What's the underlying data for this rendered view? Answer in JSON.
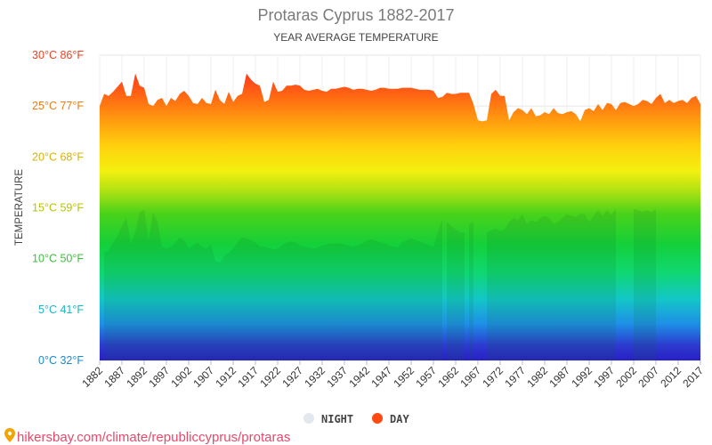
{
  "chart_data": {
    "type": "area",
    "title": "Protaras Cyprus 1882-2017",
    "subtitle": "YEAR AVERAGE TEMPERATURE",
    "ylabel": "TEMPERATURE",
    "ylim": [
      0,
      30
    ],
    "y_ticks": [
      {
        "value": 0,
        "label": "0°C 32°F",
        "color": "#1e88c9"
      },
      {
        "value": 5,
        "label": "5°C 41°F",
        "color": "#19b7c4"
      },
      {
        "value": 10,
        "label": "10°C 50°F",
        "color": "#3fbf3f"
      },
      {
        "value": 15,
        "label": "15°C 59°F",
        "color": "#b8c400"
      },
      {
        "value": 20,
        "label": "20°C 68°F",
        "color": "#d8b300"
      },
      {
        "value": 25,
        "label": "25°C 77°F",
        "color": "#f07a12"
      },
      {
        "value": 30,
        "label": "30°C 86°F",
        "color": "#f0401f"
      }
    ],
    "x_ticks": [
      "1882",
      "1887",
      "1892",
      "1897",
      "1902",
      "1907",
      "1912",
      "1917",
      "1922",
      "1927",
      "1932",
      "1937",
      "1942",
      "1947",
      "1952",
      "1957",
      "1962",
      "1967",
      "1972",
      "1977",
      "1982",
      "1987",
      "1992",
      "1997",
      "2002",
      "2007",
      "2012",
      "2017"
    ],
    "xlim": [
      1882,
      2017
    ],
    "grid": true,
    "legend_position": "bottom",
    "series": [
      {
        "name": "DAY",
        "color": "#ff4a12",
        "points": [
          [
            1882,
            25.0
          ],
          [
            1883,
            26.2
          ],
          [
            1884,
            26.0
          ],
          [
            1885,
            26.4
          ],
          [
            1887,
            27.4
          ],
          [
            1888,
            26.0
          ],
          [
            1889,
            26.0
          ],
          [
            1890,
            28.2
          ],
          [
            1891,
            27.0
          ],
          [
            1892,
            26.8
          ],
          [
            1893,
            25.2
          ],
          [
            1894,
            25.0
          ],
          [
            1895,
            25.6
          ],
          [
            1896,
            25.8
          ],
          [
            1897,
            25.0
          ],
          [
            1898,
            25.8
          ],
          [
            1899,
            25.5
          ],
          [
            1900,
            26.2
          ],
          [
            1901,
            26.5
          ],
          [
            1902,
            26.0
          ],
          [
            1903,
            25.3
          ],
          [
            1904,
            25.2
          ],
          [
            1905,
            25.8
          ],
          [
            1906,
            25.3
          ],
          [
            1907,
            25.2
          ],
          [
            1908,
            26.6
          ],
          [
            1909,
            25.6
          ],
          [
            1910,
            25.2
          ],
          [
            1911,
            26.4
          ],
          [
            1912,
            25.4
          ],
          [
            1913,
            26.0
          ],
          [
            1914,
            26.2
          ],
          [
            1915,
            28.2
          ],
          [
            1916,
            27.6
          ],
          [
            1917,
            27.2
          ],
          [
            1918,
            27.0
          ],
          [
            1919,
            25.4
          ],
          [
            1920,
            25.6
          ],
          [
            1921,
            27.4
          ],
          [
            1922,
            26.4
          ],
          [
            1923,
            26.5
          ],
          [
            1924,
            27.0
          ],
          [
            1925,
            27.0
          ],
          [
            1926,
            27.1
          ],
          [
            1927,
            27.0
          ],
          [
            1928,
            26.6
          ],
          [
            1929,
            26.5
          ],
          [
            1930,
            26.6
          ],
          [
            1931,
            26.7
          ],
          [
            1932,
            26.5
          ],
          [
            1933,
            26.4
          ],
          [
            1934,
            26.7
          ],
          [
            1935,
            26.7
          ],
          [
            1936,
            26.8
          ],
          [
            1937,
            26.9
          ],
          [
            1938,
            26.8
          ],
          [
            1939,
            26.6
          ],
          [
            1940,
            26.7
          ],
          [
            1941,
            26.7
          ],
          [
            1942,
            26.6
          ],
          [
            1943,
            26.5
          ],
          [
            1944,
            26.6
          ],
          [
            1945,
            26.8
          ],
          [
            1946,
            26.8
          ],
          [
            1947,
            26.7
          ],
          [
            1948,
            26.7
          ],
          [
            1949,
            26.7
          ],
          [
            1950,
            26.8
          ],
          [
            1951,
            26.8
          ],
          [
            1952,
            26.8
          ],
          [
            1953,
            26.7
          ],
          [
            1954,
            26.6
          ],
          [
            1955,
            26.6
          ],
          [
            1956,
            26.6
          ],
          [
            1957,
            26.5
          ],
          [
            1958,
            25.8
          ],
          [
            1959,
            25.9
          ],
          [
            1960,
            26.3
          ],
          [
            1961,
            26.2
          ],
          [
            1962,
            26.2
          ],
          [
            1963,
            26.3
          ],
          [
            1964,
            26.3
          ],
          [
            1965,
            26.3
          ],
          [
            1966,
            25.2
          ],
          [
            1967,
            23.6
          ],
          [
            1968,
            23.5
          ],
          [
            1969,
            23.6
          ],
          [
            1970,
            26.2
          ],
          [
            1971,
            26.6
          ],
          [
            1972,
            26.0
          ],
          [
            1973,
            26.0
          ],
          [
            1974,
            23.6
          ],
          [
            1975,
            24.4
          ],
          [
            1976,
            24.8
          ],
          [
            1977,
            24.6
          ],
          [
            1978,
            24.2
          ],
          [
            1979,
            24.8
          ],
          [
            1980,
            24.0
          ],
          [
            1981,
            24.1
          ],
          [
            1982,
            24.4
          ],
          [
            1983,
            24.2
          ],
          [
            1984,
            24.8
          ],
          [
            1985,
            24.3
          ],
          [
            1986,
            24.2
          ],
          [
            1987,
            24.4
          ],
          [
            1988,
            24.5
          ],
          [
            1989,
            24.2
          ],
          [
            1990,
            23.5
          ],
          [
            1991,
            24.6
          ],
          [
            1992,
            24.8
          ],
          [
            1993,
            24.5
          ],
          [
            1994,
            25.2
          ],
          [
            1995,
            24.6
          ],
          [
            1996,
            25.3
          ],
          [
            1997,
            25.2
          ],
          [
            1998,
            24.6
          ],
          [
            1999,
            25.3
          ],
          [
            2000,
            25.4
          ],
          [
            2001,
            25.2
          ],
          [
            2002,
            25.0
          ],
          [
            2003,
            25.2
          ],
          [
            2004,
            25.6
          ],
          [
            2005,
            25.5
          ],
          [
            2006,
            25.2
          ],
          [
            2007,
            25.8
          ],
          [
            2008,
            26.2
          ],
          [
            2009,
            25.3
          ],
          [
            2010,
            25.6
          ],
          [
            2011,
            25.3
          ],
          [
            2012,
            25.5
          ],
          [
            2013,
            25.6
          ],
          [
            2014,
            25.3
          ],
          [
            2015,
            25.8
          ],
          [
            2016,
            26.0
          ],
          [
            2017,
            25.2
          ]
        ]
      },
      {
        "name": "NIGHT",
        "color": "#e6ecf5",
        "segments": [
          [
            [
              1883,
              10.6
            ],
            [
              1884,
              10.8
            ],
            [
              1885,
              11.6
            ],
            [
              1886,
              12.2
            ],
            [
              1887,
              13.2
            ],
            [
              1888,
              14.0
            ],
            [
              1889,
              11.5
            ],
            [
              1890,
              12.6
            ],
            [
              1891,
              14.6
            ],
            [
              1892,
              14.8
            ],
            [
              1893,
              11.8
            ],
            [
              1894,
              14.6
            ],
            [
              1895,
              13.6
            ],
            [
              1896,
              11.2
            ],
            [
              1897,
              11.0
            ],
            [
              1898,
              11.2
            ],
            [
              1899,
              11.6
            ],
            [
              1900,
              12.1
            ],
            [
              1901,
              11.8
            ],
            [
              1902,
              11.0
            ],
            [
              1903,
              11.3
            ],
            [
              1904,
              11.6
            ],
            [
              1905,
              11.2
            ],
            [
              1906,
              11.0
            ],
            [
              1907,
              11.4
            ],
            [
              1908,
              9.8
            ],
            [
              1909,
              9.6
            ],
            [
              1910,
              10.3
            ],
            [
              1911,
              10.6
            ],
            [
              1912,
              11.0
            ],
            [
              1913,
              11.6
            ],
            [
              1914,
              12.1
            ],
            [
              1915,
              12.0
            ],
            [
              1916,
              11.8
            ],
            [
              1917,
              11.6
            ],
            [
              1918,
              11.2
            ],
            [
              1919,
              11.2
            ],
            [
              1920,
              11.1
            ],
            [
              1921,
              10.9
            ],
            [
              1922,
              11.0
            ],
            [
              1923,
              11.3
            ],
            [
              1924,
              11.6
            ],
            [
              1925,
              11.7
            ],
            [
              1926,
              11.6
            ],
            [
              1927,
              11.3
            ],
            [
              1928,
              11.2
            ],
            [
              1929,
              11.1
            ],
            [
              1930,
              11.0
            ],
            [
              1931,
              11.1
            ],
            [
              1932,
              11.3
            ],
            [
              1933,
              11.4
            ],
            [
              1934,
              11.5
            ],
            [
              1935,
              11.5
            ],
            [
              1936,
              11.5
            ],
            [
              1937,
              11.4
            ],
            [
              1938,
              11.3
            ],
            [
              1939,
              11.2
            ],
            [
              1940,
              11.3
            ],
            [
              1941,
              11.5
            ],
            [
              1942,
              11.8
            ],
            [
              1943,
              11.9
            ],
            [
              1944,
              11.8
            ],
            [
              1945,
              11.6
            ],
            [
              1946,
              11.5
            ],
            [
              1947,
              11.3
            ],
            [
              1948,
              11.2
            ],
            [
              1949,
              11.1
            ],
            [
              1950,
              11.6
            ],
            [
              1951,
              11.8
            ],
            [
              1952,
              12.0
            ],
            [
              1953,
              11.8
            ],
            [
              1954,
              11.7
            ],
            [
              1955,
              11.5
            ],
            [
              1956,
              11.3
            ],
            [
              1957,
              11.2
            ],
            [
              1958,
              12.6
            ],
            [
              1959,
              13.9
            ]
          ],
          [
            [
              1960,
              13.6
            ],
            [
              1961,
              13.2
            ],
            [
              1962,
              12.9
            ],
            [
              1963,
              12.6
            ],
            [
              1964,
              12.6
            ]
          ],
          [
            [
              1965,
              13.4
            ],
            [
              1966,
              13.6
            ]
          ],
          [
            [
              1969,
              12.6
            ],
            [
              1970,
              12.8
            ],
            [
              1971,
              13.0
            ],
            [
              1972,
              12.7
            ],
            [
              1973,
              12.9
            ],
            [
              1974,
              13.6
            ],
            [
              1975,
              14.0
            ],
            [
              1976,
              13.8
            ],
            [
              1977,
              14.4
            ],
            [
              1978,
              13.4
            ],
            [
              1979,
              13.8
            ],
            [
              1980,
              13.6
            ],
            [
              1981,
              14.0
            ],
            [
              1982,
              14.2
            ],
            [
              1983,
              14.0
            ],
            [
              1984,
              13.4
            ],
            [
              1985,
              13.6
            ],
            [
              1986,
              14.0
            ],
            [
              1987,
              14.4
            ],
            [
              1988,
              14.2
            ],
            [
              1989,
              14.1
            ],
            [
              1990,
              14.4
            ],
            [
              1991,
              14.4
            ],
            [
              1992,
              13.6
            ],
            [
              1993,
              14.2
            ],
            [
              1994,
              14.8
            ],
            [
              1995,
              14.2
            ],
            [
              1996,
              14.8
            ],
            [
              1997,
              14.3
            ],
            [
              1998,
              14.9
            ]
          ],
          [
            [
              2002,
              14.9
            ],
            [
              2003,
              14.8
            ],
            [
              2004,
              14.6
            ],
            [
              2005,
              14.8
            ],
            [
              2006,
              14.6
            ],
            [
              2007,
              14.9
            ]
          ]
        ]
      }
    ],
    "legend": [
      {
        "name": "NIGHT",
        "color": "#e3e8f0"
      },
      {
        "name": "DAY",
        "color": "#ff4a12"
      }
    ]
  },
  "credit": {
    "text": "hikersbay.com/climate/republiccyprus/protaras",
    "color": "#e64a6b"
  }
}
